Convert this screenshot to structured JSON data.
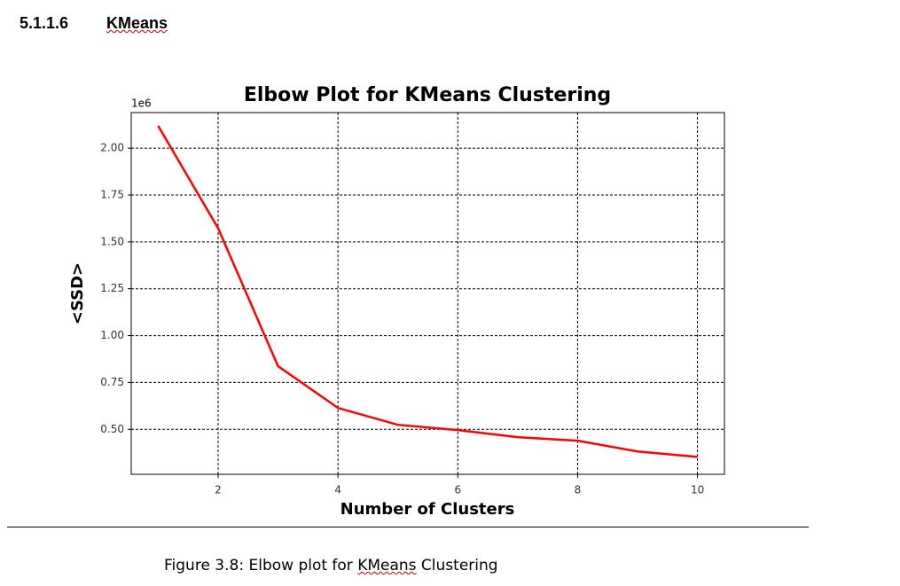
{
  "heading": {
    "number": "5.1.1.6",
    "title": "KMeans"
  },
  "chart_data": {
    "type": "line",
    "title": "Elbow Plot for KMeans Clustering",
    "x_label": "Number of Clusters",
    "y_label": "<SSD>",
    "y_offset_label": "1e6",
    "x": [
      1,
      2,
      3,
      4,
      5,
      6,
      7,
      8,
      9,
      10
    ],
    "series": [
      {
        "name": "SSD",
        "color": "#ff0000",
        "values": [
          2.119,
          1.573,
          0.837,
          0.614,
          0.524,
          0.496,
          0.458,
          0.439,
          0.382,
          0.353
        ]
      }
    ],
    "xlim": [
      0.55,
      10.45
    ],
    "xticks": [
      2,
      4,
      6,
      8,
      10
    ],
    "ylim": [
      0.26,
      2.19
    ],
    "yticks": [
      {
        "value": 0.5,
        "label": "0.50"
      },
      0.75,
      {
        "value": 1,
        "label": "1.00"
      },
      1.25,
      {
        "value": 1.5,
        "label": "1.50"
      },
      1.75,
      {
        "value": 2,
        "label": "2.00"
      }
    ],
    "grid": true
  },
  "caption": {
    "prefix": "Figure 3.8: Elbow plot for ",
    "emphasis": "KMeans",
    "suffix": " Clustering"
  }
}
